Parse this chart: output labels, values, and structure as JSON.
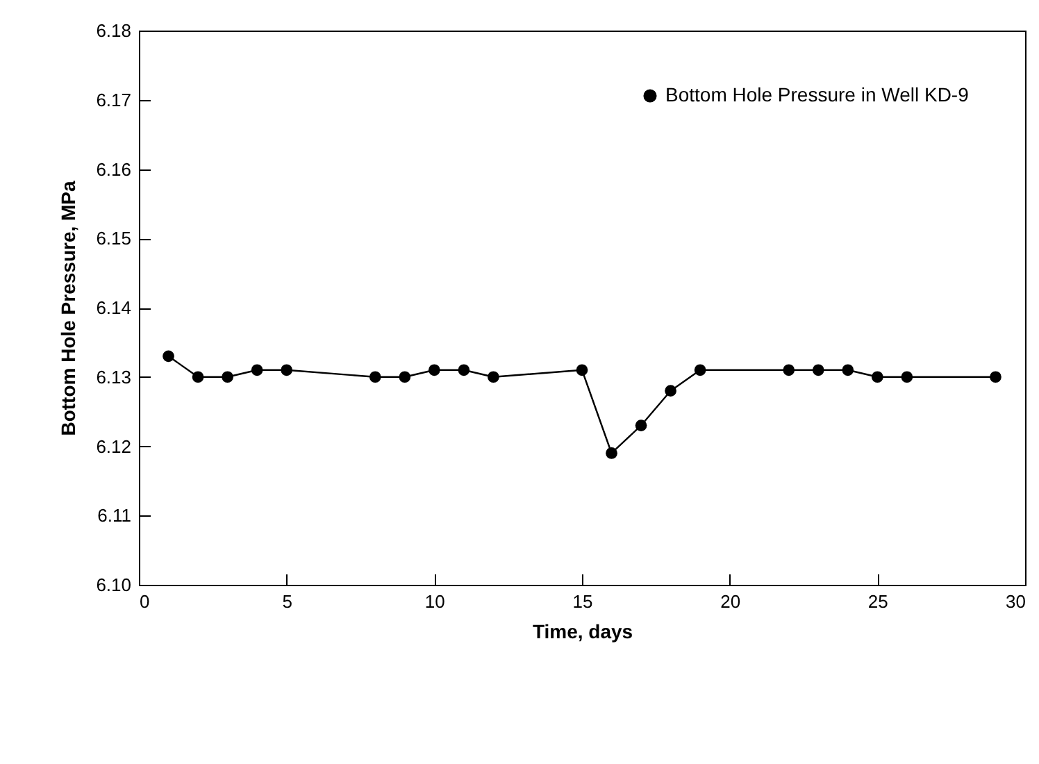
{
  "chart_data": {
    "type": "line",
    "xlabel": "Time, days",
    "ylabel": "Bottom Hole Pressure, MPa",
    "x": [
      1,
      2,
      3,
      4,
      5,
      8,
      9,
      10,
      11,
      12,
      15,
      16,
      17,
      18,
      19,
      22,
      23,
      24,
      25,
      26,
      29
    ],
    "series": [
      {
        "name": "Bottom Hole Pressure in Well KD-9",
        "color": "#000000",
        "values": [
          6.133,
          6.13,
          6.13,
          6.131,
          6.131,
          6.13,
          6.13,
          6.131,
          6.131,
          6.13,
          6.131,
          6.119,
          6.123,
          6.128,
          6.131,
          6.131,
          6.131,
          6.131,
          6.13,
          6.13,
          6.13
        ]
      }
    ],
    "xlim": [
      0,
      30
    ],
    "xticks": [
      0,
      5,
      10,
      15,
      20,
      25,
      30
    ],
    "ylim": [
      6.1,
      6.18
    ],
    "yticks": [
      {
        "value": 6.1,
        "label": "6.10"
      },
      {
        "value": 6.11,
        "label": "6.11"
      },
      {
        "value": 6.12,
        "label": "6.12"
      },
      {
        "value": 6.13,
        "label": "6.13"
      },
      {
        "value": 6.14,
        "label": "6.14"
      },
      {
        "value": 6.15,
        "label": "6.15"
      },
      {
        "value": 6.16,
        "label": "6.16"
      },
      {
        "value": 6.17,
        "label": "6.17"
      },
      {
        "value": 6.18,
        "label": "6.18"
      }
    ],
    "grid": false,
    "legend": "top right",
    "marker": "circle",
    "line_style": "solid"
  }
}
